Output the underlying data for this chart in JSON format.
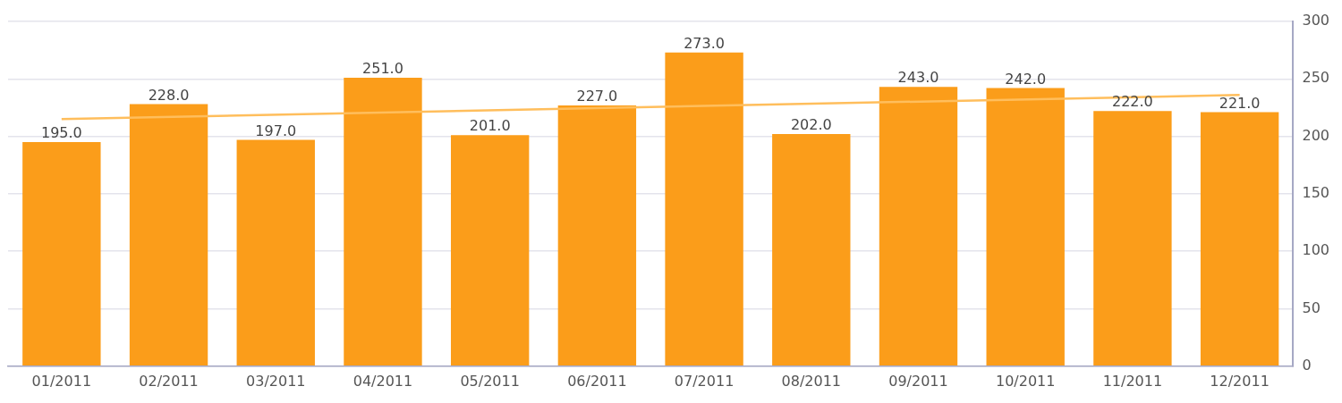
{
  "chart_data": {
    "type": "bar",
    "categories": [
      "01/2011",
      "02/2011",
      "03/2011",
      "04/2011",
      "05/2011",
      "06/2011",
      "07/2011",
      "08/2011",
      "09/2011",
      "10/2011",
      "11/2011",
      "12/2011"
    ],
    "series": [
      {
        "color": "#fb9d1a",
        "values": [
          195,
          228,
          197,
          251,
          201,
          227,
          273,
          202,
          243,
          242,
          222,
          221
        ],
        "value_labels": [
          "195.0",
          "228.0",
          "197.0",
          "251.0",
          "201.0",
          "227.0",
          "273.0",
          "202.0",
          "243.0",
          "242.0",
          "222.0",
          "221.0"
        ]
      },
      {
        "type": "line",
        "color": "#ffbe5c",
        "values": [
          215,
          null,
          null,
          null,
          null,
          null,
          null,
          null,
          null,
          null,
          null,
          236
        ],
        "marker": "none",
        "line_style": "solid"
      }
    ],
    "ylim": [
      0,
      300
    ],
    "yticks": [
      0,
      50,
      100,
      150,
      200,
      250,
      300
    ],
    "grid": "y",
    "legend": false
  }
}
